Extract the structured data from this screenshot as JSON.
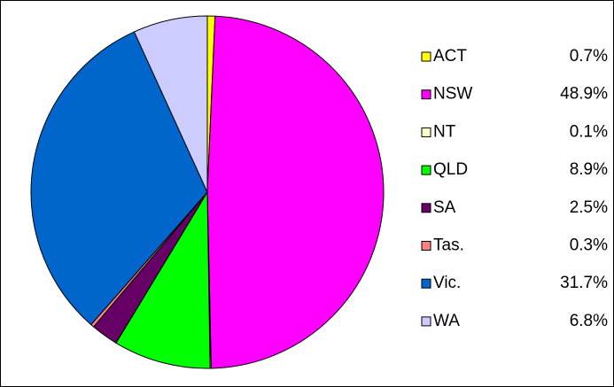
{
  "chart_data": {
    "type": "pie",
    "categories": [
      "ACT",
      "NSW",
      "NT",
      "QLD",
      "SA",
      "Tas.",
      "Vic.",
      "WA"
    ],
    "values": [
      0.7,
      48.9,
      0.1,
      8.9,
      2.5,
      0.3,
      31.7,
      6.8
    ],
    "value_labels": [
      "0.7%",
      "48.9%",
      "0.1%",
      "8.9%",
      "2.5%",
      "0.3%",
      "31.7%",
      "6.8%"
    ],
    "colors": [
      "#ffff00",
      "#ff00ff",
      "#ffffcc",
      "#00ff00",
      "#660066",
      "#ff8080",
      "#0066cc",
      "#ccccff"
    ],
    "legend": "right"
  }
}
